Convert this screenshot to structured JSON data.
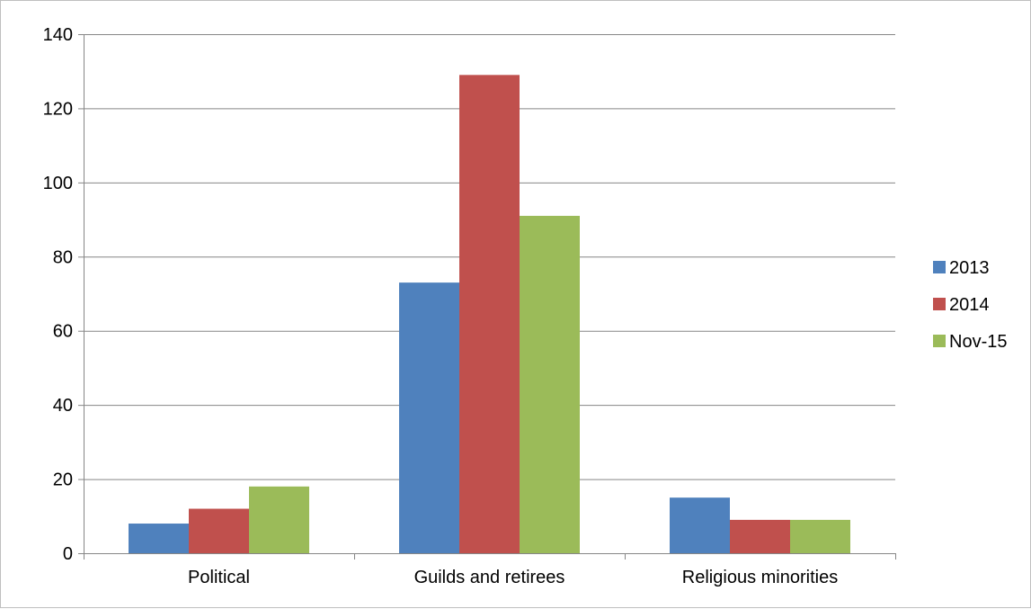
{
  "chart_data": {
    "type": "bar",
    "categories": [
      "Political",
      "Guilds and retirees",
      "Religious minorities"
    ],
    "series": [
      {
        "name": "2013",
        "values": [
          8,
          73,
          15
        ],
        "color": "#4f81bd"
      },
      {
        "name": "2014",
        "values": [
          12,
          129,
          9
        ],
        "color": "#c0504d"
      },
      {
        "name": "Nov-15",
        "values": [
          18,
          91,
          9
        ],
        "color": "#9bbb59"
      }
    ],
    "ylim": [
      0,
      140
    ],
    "yticks": [
      0,
      20,
      40,
      60,
      80,
      100,
      120,
      140
    ],
    "grid": true,
    "legend_position": "right"
  }
}
